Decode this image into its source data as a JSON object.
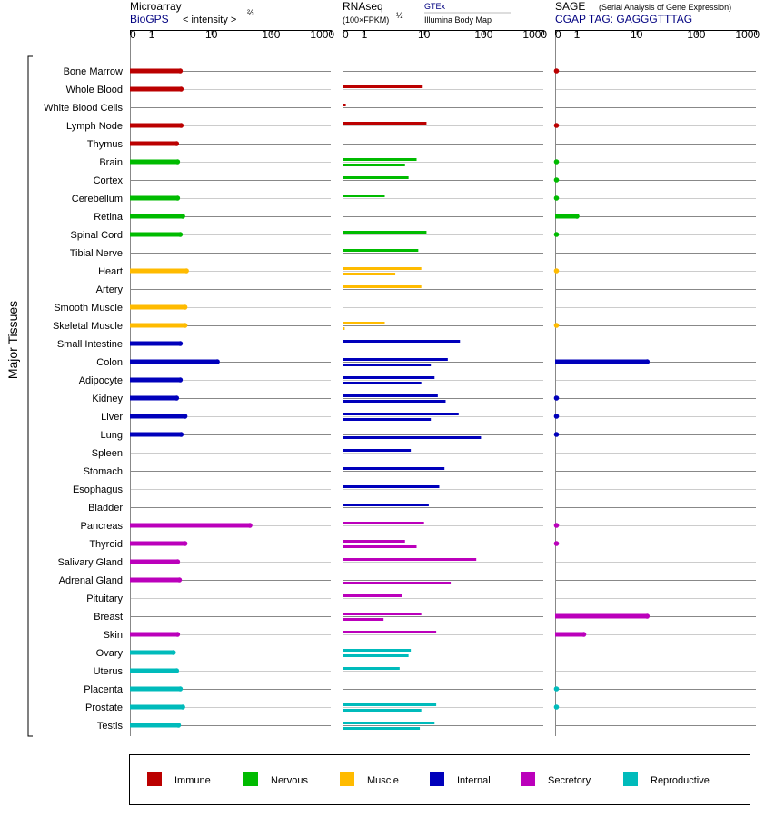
{
  "header": {
    "microarray_title": "Microarray",
    "microarray_source": "BioGPS",
    "microarray_unit": "< intensity >",
    "microarray_exp": "⅔",
    "rnaseq_title": "RNAseq",
    "rnaseq_unit": "(100×FPKM)",
    "rnaseq_exp": "½",
    "rnaseq_src1": "GTEx",
    "rnaseq_src2": "Illumina Body Map",
    "sage_title": "SAGE",
    "sage_sub": "(Serial Analysis of Gene Expression)",
    "sage_tag": "CGAP TAG: GAGGGTTTAG"
  },
  "y_group_label": "Major Tissues",
  "colors": {
    "Immune": "#bb0000",
    "Nervous": "#00bb00",
    "Muscle": "#ffbb00",
    "Internal": "#0000bb",
    "Secretory": "#bb00bb",
    "Reproductive": "#00bbbb"
  },
  "legend": [
    "Immune",
    "Nervous",
    "Muscle",
    "Internal",
    "Secretory",
    "Reproductive"
  ],
  "chart_data": {
    "type": "bar",
    "orientation": "horizontal",
    "categories": [
      "Bone Marrow",
      "Whole Blood",
      "White Blood Cells",
      "Lymph Node",
      "Thymus",
      "Brain",
      "Cortex",
      "Cerebellum",
      "Retina",
      "Spinal Cord",
      "Tibial Nerve",
      "Heart",
      "Artery",
      "Smooth Muscle",
      "Skeletal Muscle",
      "Small Intestine",
      "Colon",
      "Adipocyte",
      "Kidney",
      "Liver",
      "Lung",
      "Spleen",
      "Stomach",
      "Esophagus",
      "Bladder",
      "Pancreas",
      "Thyroid",
      "Salivary Gland",
      "Adrenal Gland",
      "Pituitary",
      "Breast",
      "Skin",
      "Ovary",
      "Uterus",
      "Placenta",
      "Prostate",
      "Testis"
    ],
    "category_groups": [
      "Immune",
      "Immune",
      "Immune",
      "Immune",
      "Immune",
      "Nervous",
      "Nervous",
      "Nervous",
      "Nervous",
      "Nervous",
      "Nervous",
      "Muscle",
      "Muscle",
      "Muscle",
      "Muscle",
      "Internal",
      "Internal",
      "Internal",
      "Internal",
      "Internal",
      "Internal",
      "Internal",
      "Internal",
      "Internal",
      "Internal",
      "Secretory",
      "Secretory",
      "Secretory",
      "Secretory",
      "Secretory",
      "Secretory",
      "Secretory",
      "Reproductive",
      "Reproductive",
      "Reproductive",
      "Reproductive",
      "Reproductive"
    ],
    "x_ticks": [
      "0",
      "1",
      "10",
      "100",
      "1000"
    ],
    "x_scale": "log-like (0 to 1000)",
    "panels": [
      {
        "name": "Microarray",
        "xlim": [
          0,
          1000
        ],
        "values": [
          3.0,
          3.1,
          null,
          3.1,
          2.6,
          2.7,
          null,
          2.7,
          3.3,
          3.0,
          null,
          3.8,
          null,
          3.6,
          3.6,
          3.0,
          12.5,
          3.0,
          2.6,
          3.6,
          3.1,
          null,
          null,
          null,
          null,
          44,
          3.6,
          2.7,
          2.9,
          null,
          null,
          2.7,
          2.3,
          2.6,
          3.0,
          3.3,
          2.8
        ]
      },
      {
        "name": "RNAseq",
        "xlim": [
          0,
          1000
        ],
        "series": [
          {
            "name": "GTEx",
            "values": [
              null,
              9.5,
              0.15,
              11,
              null,
              7.5,
              5.5,
              2.2,
              null,
              11,
              8,
              9,
              9,
              null,
              2.2,
              40,
              25,
              15,
              17,
              38,
              null,
              6,
              22,
              18,
              12,
              10,
              4.8,
              75,
              null,
              4.3,
              9,
              16,
              6,
              3.9,
              null,
              16,
              15
            ]
          },
          {
            "name": "Illumina Body Map",
            "values": [
              null,
              null,
              null,
              null,
              null,
              4.8,
              null,
              null,
              null,
              null,
              null,
              3.3,
              null,
              null,
              0.1,
              null,
              13,
              9,
              23,
              13,
              90,
              null,
              null,
              null,
              null,
              null,
              7.5,
              null,
              28,
              null,
              2.1,
              null,
              5.5,
              null,
              null,
              9,
              8.5
            ]
          }
        ]
      },
      {
        "name": "SAGE",
        "xlim": [
          0,
          1000
        ],
        "values": [
          0.05,
          null,
          null,
          0.05,
          null,
          0.03,
          0.02,
          0.02,
          1.0,
          0.02,
          null,
          0.01,
          null,
          null,
          0.01,
          null,
          15,
          null,
          0.05,
          0.05,
          0.05,
          null,
          null,
          null,
          null,
          0.05,
          0.05,
          null,
          null,
          null,
          15,
          1.3,
          null,
          null,
          0.03,
          0.03,
          null
        ]
      }
    ]
  }
}
